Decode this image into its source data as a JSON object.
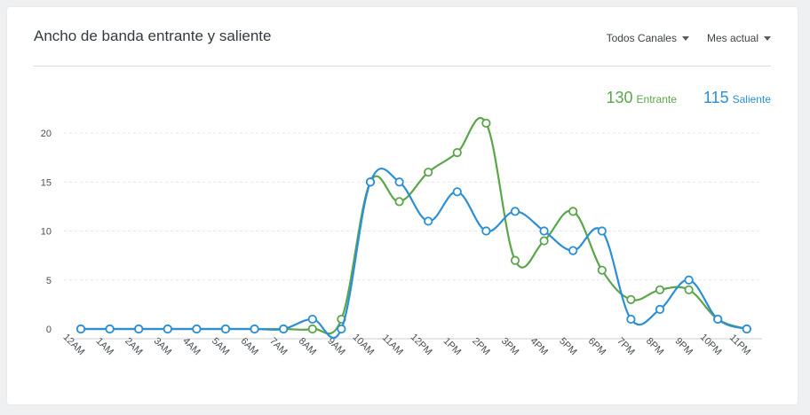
{
  "header": {
    "title": "Ancho de banda entrante y saliente",
    "filters": [
      {
        "label": "Todos Canales"
      },
      {
        "label": "Mes actual"
      }
    ]
  },
  "legend": {
    "in_value": "130",
    "in_label": "Entrante",
    "out_value": "115",
    "out_label": "Saliente"
  },
  "colors": {
    "in": "#5ba64a",
    "out": "#2c8fd6",
    "grid": "#e4e6e8",
    "axis": "#c8ccd0"
  },
  "chart_data": {
    "type": "line",
    "title": "Ancho de banda entrante y saliente",
    "categories": [
      "12AM",
      "1AM",
      "2AM",
      "3AM",
      "4AM",
      "5AM",
      "6AM",
      "7AM",
      "8AM",
      "9AM",
      "10AM",
      "11AM",
      "12PM",
      "1PM",
      "2PM",
      "3PM",
      "4PM",
      "5PM",
      "6PM",
      "7PM",
      "8PM",
      "9PM",
      "10PM",
      "11PM"
    ],
    "yticks": [
      0,
      5,
      10,
      15,
      20
    ],
    "ylim": [
      0,
      21.5
    ],
    "grid": true,
    "legend_position": "top-right",
    "series": [
      {
        "name": "Entrante",
        "color": "#5ba64a",
        "values": [
          0,
          0,
          0,
          0,
          0,
          0,
          0,
          0,
          0,
          1,
          15,
          13,
          16,
          18,
          21,
          7,
          9,
          12,
          6,
          3,
          4,
          4,
          1,
          0
        ]
      },
      {
        "name": "Saliente",
        "color": "#2c8fd6",
        "values": [
          0,
          0,
          0,
          0,
          0,
          0,
          0,
          0,
          1,
          0,
          15,
          15,
          11,
          14,
          10,
          12,
          10,
          8,
          10,
          1,
          2,
          5,
          1,
          0
        ]
      }
    ]
  }
}
